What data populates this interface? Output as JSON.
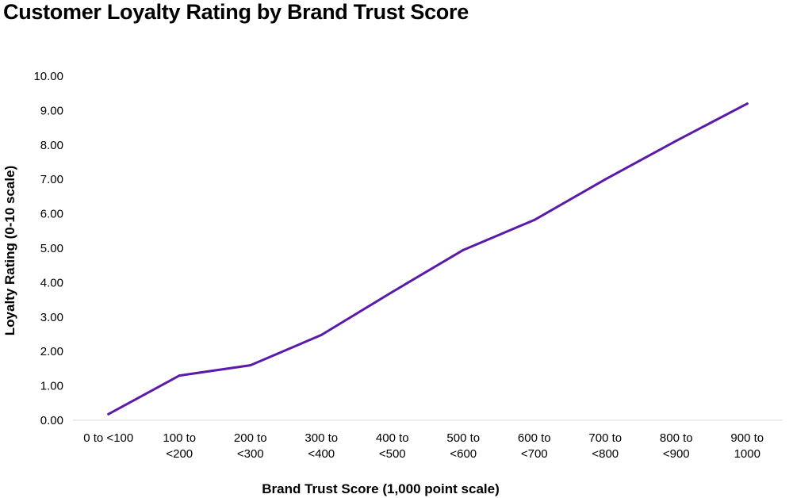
{
  "chart_data": {
    "type": "line",
    "title": "Customer Loyalty Rating by Brand Trust Score",
    "xlabel": "Brand Trust Score (1,000 point scale)",
    "ylabel": "Loyalty Rating (0-10 scale)",
    "ylim": [
      0,
      10
    ],
    "yticks": [
      "0.00",
      "1.00",
      "2.00",
      "3.00",
      "4.00",
      "5.00",
      "6.00",
      "7.00",
      "8.00",
      "9.00",
      "10.00"
    ],
    "categories": [
      [
        "0 to <100"
      ],
      [
        "100 to",
        "<200"
      ],
      [
        "200 to",
        "<300"
      ],
      [
        "300 to",
        "<400"
      ],
      [
        "400 to",
        "<500"
      ],
      [
        "500 to",
        "<600"
      ],
      [
        "600 to",
        "<700"
      ],
      [
        "700 to",
        "<800"
      ],
      [
        "800 to",
        "<900"
      ],
      [
        "900 to",
        "1000"
      ]
    ],
    "series": [
      {
        "values": [
          0.18,
          1.3,
          1.6,
          2.48,
          3.73,
          4.95,
          5.82,
          7.0,
          8.12,
          9.2
        ]
      }
    ],
    "line_color": "#5b1aa8",
    "grid": false,
    "legend": "none"
  }
}
